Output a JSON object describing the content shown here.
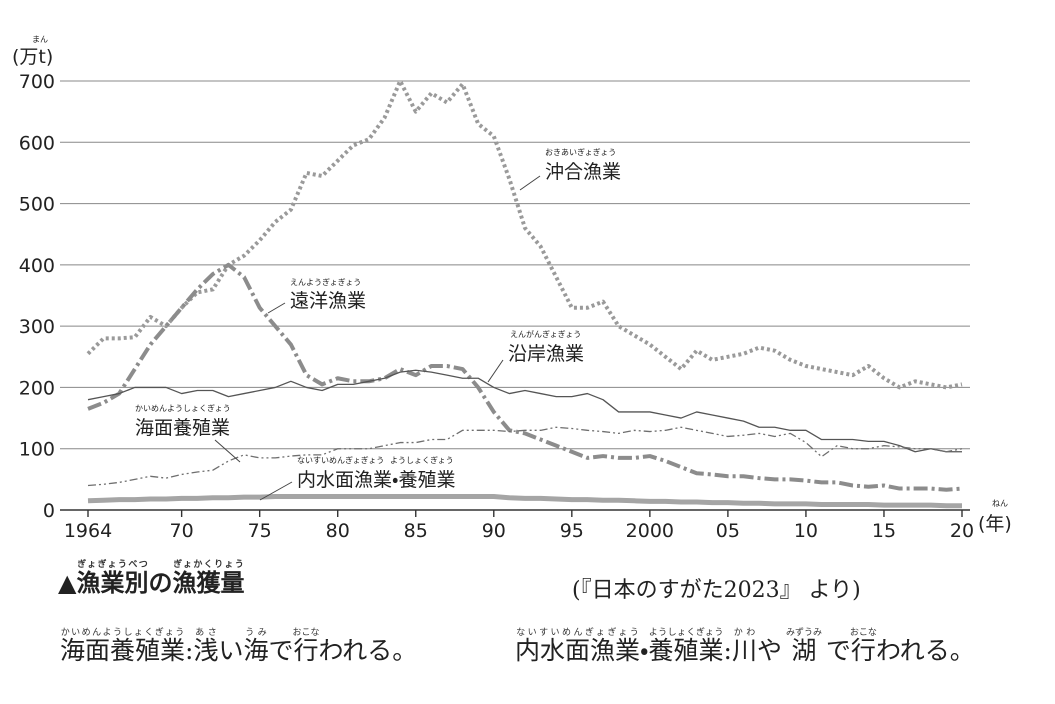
{
  "chart_data": {
    "type": "line",
    "y_label": "(万t)",
    "y_label_ruby": "まん",
    "x_label": "(年)",
    "x_label_ruby": "ねん",
    "x": [
      1964,
      1965,
      1966,
      1967,
      1968,
      1969,
      1970,
      1971,
      1972,
      1973,
      1974,
      1975,
      1976,
      1977,
      1978,
      1979,
      1980,
      1981,
      1982,
      1983,
      1984,
      1985,
      1986,
      1987,
      1988,
      1989,
      1990,
      1991,
      1992,
      1993,
      1994,
      1995,
      1996,
      1997,
      1998,
      1999,
      2000,
      2001,
      2002,
      2003,
      2004,
      2005,
      2006,
      2007,
      2008,
      2009,
      2010,
      2011,
      2012,
      2013,
      2014,
      2015,
      2016,
      2017,
      2018,
      2019,
      2020
    ],
    "xlim": [
      1964,
      2020
    ],
    "xticks": [
      1964,
      {
        "value": 1970,
        "label": "70"
      },
      {
        "value": 1975,
        "label": "75"
      },
      {
        "value": 1980,
        "label": "80"
      },
      {
        "value": 1985,
        "label": "85"
      },
      {
        "value": 1990,
        "label": "90"
      },
      {
        "value": 1995,
        "label": "95"
      },
      2000,
      {
        "value": 2005,
        "label": "05"
      },
      {
        "value": 2010,
        "label": "10"
      },
      {
        "value": 2015,
        "label": "15"
      },
      {
        "value": 2020,
        "label": "20"
      }
    ],
    "ylim": [
      0,
      700
    ],
    "yticks": [
      0,
      100,
      200,
      300,
      400,
      500,
      600,
      700
    ],
    "grid": true,
    "series": [
      {
        "name": "沖合漁業",
        "ruby": [
          "おきあいぎょぎょう"
        ],
        "color": "#9a9a9a",
        "values": [
          255,
          280,
          280,
          282,
          315,
          300,
          330,
          355,
          360,
          400,
          415,
          440,
          470,
          490,
          550,
          545,
          570,
          595,
          605,
          640,
          700,
          650,
          680,
          665,
          695,
          630,
          610,
          540,
          460,
          430,
          380,
          330,
          330,
          340,
          300,
          285,
          270,
          250,
          230,
          260,
          245,
          250,
          255,
          265,
          260,
          245,
          235,
          230,
          225,
          220,
          235,
          215,
          200,
          210,
          205,
          200,
          205
        ]
      },
      {
        "name": "遠洋漁業",
        "ruby": [
          "えんようぎょぎょう"
        ],
        "color": "#8c8c8c",
        "values": [
          165,
          175,
          190,
          230,
          270,
          300,
          330,
          360,
          385,
          400,
          380,
          330,
          300,
          270,
          220,
          205,
          215,
          210,
          210,
          215,
          230,
          220,
          235,
          235,
          230,
          200,
          160,
          130,
          125,
          115,
          105,
          95,
          85,
          88,
          85,
          85,
          88,
          80,
          70,
          60,
          58,
          55,
          55,
          52,
          50,
          50,
          48,
          45,
          45,
          40,
          38,
          40,
          35,
          35,
          35,
          33,
          35
        ]
      },
      {
        "name": "沿岸漁業",
        "ruby": [
          "えんがんぎょぎょう"
        ],
        "color": "#555555",
        "values": [
          180,
          185,
          190,
          200,
          200,
          200,
          190,
          195,
          195,
          185,
          190,
          195,
          200,
          210,
          200,
          195,
          205,
          205,
          210,
          215,
          225,
          228,
          225,
          220,
          215,
          215,
          200,
          190,
          195,
          190,
          185,
          185,
          190,
          180,
          160,
          160,
          160,
          155,
          150,
          160,
          155,
          150,
          145,
          135,
          135,
          130,
          130,
          115,
          115,
          115,
          112,
          112,
          105,
          95,
          100,
          95,
          95
        ]
      },
      {
        "name": "海面養殖業",
        "ruby": [
          "かいめんようしょくぎょう"
        ],
        "color": "#6e6e6e",
        "values": [
          40,
          42,
          45,
          50,
          55,
          52,
          58,
          62,
          65,
          80,
          90,
          85,
          85,
          88,
          90,
          90,
          100,
          100,
          100,
          105,
          110,
          110,
          115,
          115,
          130,
          130,
          130,
          128,
          130,
          130,
          135,
          133,
          130,
          128,
          125,
          130,
          128,
          130,
          135,
          130,
          125,
          120,
          122,
          125,
          120,
          125,
          110,
          87,
          105,
          100,
          100,
          105,
          103,
          100,
          100,
          95,
          100
        ]
      },
      {
        "name": "内水面漁業・養殖業",
        "ruby": [
          "ないすいめんぎょぎょう",
          "ようしょくぎょう"
        ],
        "color": "#a5a5a5",
        "values": [
          15,
          16,
          17,
          17,
          18,
          18,
          19,
          19,
          20,
          20,
          21,
          21,
          22,
          22,
          22,
          22,
          22,
          22,
          22,
          22,
          22,
          22,
          22,
          22,
          22,
          22,
          22,
          20,
          19,
          19,
          18,
          17,
          17,
          16,
          16,
          15,
          14,
          14,
          13,
          13,
          12,
          12,
          11,
          11,
          10,
          10,
          10,
          9,
          9,
          9,
          9,
          8,
          8,
          8,
          8,
          7,
          7
        ]
      }
    ]
  },
  "caption": {
    "marker": "▲",
    "segments": [
      {
        "text": "漁業別",
        "ruby": "ぎょぎょうべつ"
      },
      {
        "text": "の"
      },
      {
        "text": "漁獲量",
        "ruby": "ぎょかくりょう"
      }
    ]
  },
  "source": "(『日本のすがた2023』 より)",
  "notes": [
    {
      "segments": [
        {
          "text": "海面養殖業",
          "ruby": "かいめんようしょくぎょう"
        },
        {
          "text": ":"
        },
        {
          "text": "浅",
          "ruby": "あさ"
        },
        {
          "text": "い"
        },
        {
          "text": "海",
          "ruby": "うみ"
        },
        {
          "text": "で"
        },
        {
          "text": "行",
          "ruby": "おこな"
        },
        {
          "text": "われる。"
        }
      ]
    },
    {
      "segments": [
        {
          "text": "内水面漁業",
          "ruby": "ないすいめんぎょぎょう"
        },
        {
          "text": "・"
        },
        {
          "text": "養殖業",
          "ruby": "ようしょくぎょう"
        },
        {
          "text": ":"
        },
        {
          "text": "川",
          "ruby": "かわ"
        },
        {
          "text": "や "
        },
        {
          "text": "湖",
          "ruby": "みずうみ"
        },
        {
          "text": " で"
        },
        {
          "text": "行",
          "ruby": "おこな"
        },
        {
          "text": "われる。"
        }
      ]
    }
  ]
}
